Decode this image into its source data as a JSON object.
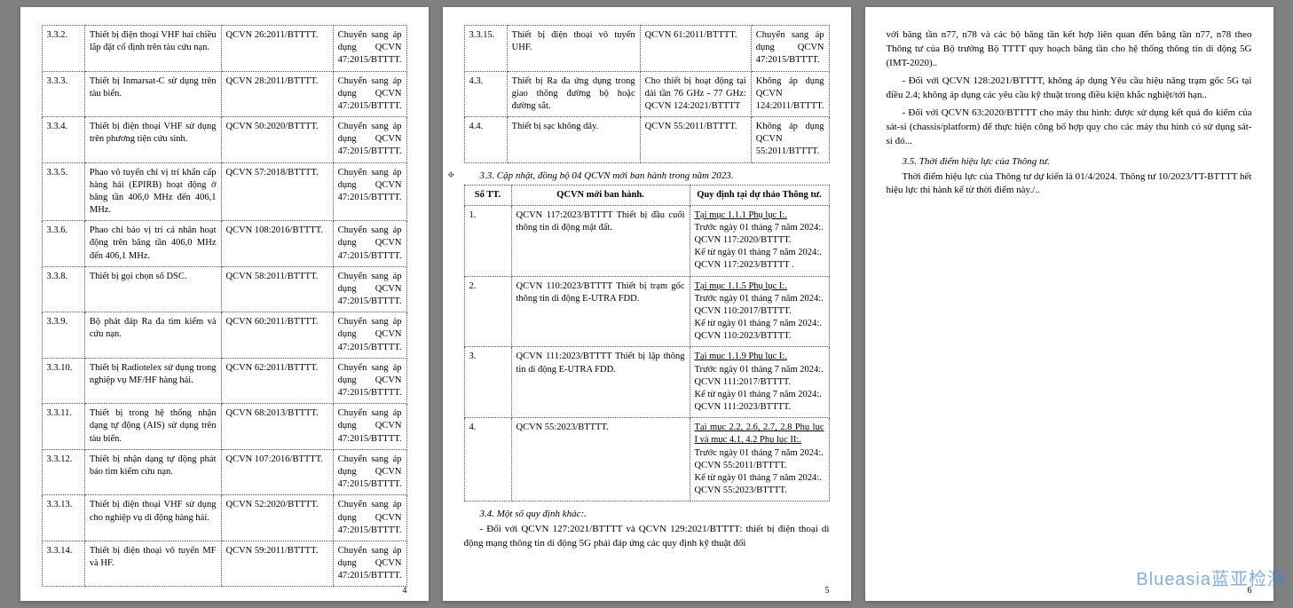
{
  "page1": {
    "rows": [
      {
        "idx": "3.3.2.",
        "desc": "Thiết bị điện thoại VHF hai chiều lắp đặt cố định trên tàu cứu nạn.",
        "code": "QCVN 26:2011/BTTTT.",
        "note": "Chuyển sang áp dụng QCVN 47:2015/BTTTT."
      },
      {
        "idx": "3.3.3.",
        "desc": "Thiết bị Inmarsat-C sử dụng trên tàu biển.",
        "code": "QCVN 28:2011/BTTTT.",
        "note": "Chuyển sang áp dụng QCVN 47:2015/BTTTT."
      },
      {
        "idx": "3.3.4.",
        "desc": "Thiết bị điện thoại VHF sử dụng trên phương tiện cứu sinh.",
        "code": "QCVN 50:2020/BTTTT.",
        "note": "Chuyển sang áp dụng QCVN 47:2015/BTTTT."
      },
      {
        "idx": "3.3.5.",
        "desc": "Phao vô tuyến chỉ vị trí khẩn cấp hàng hải (EPIRB) hoạt động ở băng tần 406,0 MHz đến 406,1 MHz.",
        "code": "QCVN 57:2018/BTTTT.",
        "note": "Chuyển sang áp dụng QCVN 47:2015/BTTTT."
      },
      {
        "idx": "3.3.6.",
        "desc": "Phao chỉ báo vị trí cá nhân hoạt động trên băng tần 406,0 MHz đến 406,1 MHz.",
        "code": "QCVN 108:2016/BTTTT.",
        "note": "Chuyển sang áp dụng QCVN 47:2015/BTTTT."
      },
      {
        "idx": "3.3.8.",
        "desc": "Thiết bị gọi chọn số DSC.",
        "code": "QCVN 58:2011/BTTTT.",
        "note": "Chuyển sang áp dụng QCVN 47:2015/BTTTT."
      },
      {
        "idx": "3.3.9.",
        "desc": "Bộ phát đáp Ra đa tìm kiếm và cứu nạn.",
        "code": "QCVN 60:2011/BTTTT.",
        "note": "Chuyển sang áp dụng QCVN 47:2015/BTTTT."
      },
      {
        "idx": "3.3.10.",
        "desc": "Thiết bị Radiotelex sử dụng trong nghiệp vụ MF/HF hàng hải.",
        "code": "QCVN 62:2011/BTTTT.",
        "note": "Chuyển sang áp dụng QCVN 47:2015/BTTTT."
      },
      {
        "idx": "3.3.11.",
        "desc": "Thiết bị trong hệ thống nhận dạng tự động (AIS) sử dụng trên tàu biển.",
        "code": "QCVN 68:2013/BTTTT.",
        "note": "Chuyển sang áp dụng QCVN 47:2015/BTTTT."
      },
      {
        "idx": "3.3.12.",
        "desc": "Thiết bị nhận dạng tự động phát báo tìm kiếm cứu nạn.",
        "code": "QCVN 107:2016/BTTTT.",
        "note": "Chuyển sang áp dụng QCVN 47:2015/BTTTT."
      },
      {
        "idx": "3.3.13.",
        "desc": "Thiết bị điện thoại VHF sử dụng cho nghiệp vụ di động hàng hải.",
        "code": "QCVN 52:2020/BTTTT.",
        "note": "Chuyển sang áp dụng QCVN 47:2015/BTTTT."
      },
      {
        "idx": "3.3.14.",
        "desc": "Thiết bị điện thoại vô tuyến MF và HF.",
        "code": "QCVN 59:2011/BTTTT.",
        "note": "Chuyển sang áp dụng QCVN 47:2015/BTTTT."
      }
    ],
    "pagenum": "4"
  },
  "page2": {
    "rows_top": [
      {
        "idx": "3.3.15.",
        "desc": "Thiết bị điện thoại vô tuyến UHF.",
        "code": "QCVN 61:2011/BTTTT.",
        "note": "Chuyển sang áp dụng QCVN 47:2015/BTTTT."
      },
      {
        "idx": "4.3.",
        "desc": "Thiết bị Ra đa ứng dụng trong giao thông đường bộ hoặc đường sắt.",
        "code": "Cho thiết bị hoạt động tại dải tần 76 GHz - 77 GHz: QCVN 124:2021/BTTTT",
        "note": "Không áp dụng QCVN 124:2011/BTTTT."
      },
      {
        "idx": "4.4.",
        "desc": "Thiết bị sạc không dây.",
        "code": "QCVN 55:2011/BTTTT.",
        "note": "Không áp dụng QCVN 55:2011/BTTTT."
      }
    ],
    "heading33": "3.3. Cập nhật, đồng bộ 04 QCVN mới ban hành trong năm 2023.",
    "tbl2_header": {
      "c0": "Số TT.",
      "c1": "QCVN mới ban hành.",
      "c2": "Quy định tại dự thảo Thông tư."
    },
    "tbl2_rows": [
      {
        "idx": "1.",
        "col1": "QCVN 117:2023/BTTTT Thiết bị đầu cuối thông tin di động mặt đất.",
        "col2": "Tại mục 1.1.1 Phụ lục I:.\nTrước ngày 01 tháng 7 năm 2024:.\nQCVN 117:2020/BTTTT.\nKể từ ngày 01 tháng 7 năm 2024:.\nQCVN 117:2023/BTTTT ."
      },
      {
        "idx": "2.",
        "col1": "QCVN 110:2023/BTTTT Thiết bị trạm gốc thông tin di động E-UTRA FDD.",
        "col2": "Tại mục 1.1.5 Phụ lục I:.\nTrước ngày 01 tháng 7 năm 2024:.\nQCVN 110:2017/BTTTT.\nKể từ ngày 01 tháng 7 năm 2024:.\nQCVN 110:2023/BTTTT."
      },
      {
        "idx": "3.",
        "col1": "QCVN 111:2023/BTTTT Thiết bị lặp thông tin di động E-UTRA FDD.",
        "col2": "Tại mục 1.1.9 Phụ lục I:.\nTrước ngày 01 tháng 7 năm 2024:.\nQCVN 111:2017/BTTTT.\nKể từ ngày 01 tháng 7 năm 2024:.\nQCVN 111:2023/BTTTT."
      },
      {
        "idx": "4.",
        "col1": "QCVN 55:2023/BTTTT.",
        "col2": "Tại mục 2.2, 2.6, 2.7, 2.8 Phụ lục I và mục 4.1, 4.2 Phụ lục II:.\nTrước ngày 01 tháng 7 năm 2024:.\nQCVN 55:2011/BTTTT.\nKể từ ngày 01 tháng 7 năm 2024:.\nQCVN 55:2023/BTTTT."
      }
    ],
    "heading34": "3.4. Một số quy định khác:.",
    "para_bottom": "- Đối với QCVN 127:2021/BTTTT và QCVN 129:2021/BTTTT: thiết bị điện thoại di động mạng thông tin di động 5G phải đáp ứng các quy định kỹ thuật đối",
    "pagenum": "5"
  },
  "page3": {
    "para1": "với băng tần n77, n78 và các bộ băng tần kết hợp liên quan đến băng tần n77, n78 theo Thông tư của Bộ trưởng Bộ TTTT quy hoạch băng tần cho hệ thống thông tin di động 5G (IMT-2020)..",
    "para2": "- Đối với QCVN 128:2021/BTTTT, không áp dụng Yêu cầu hiệu năng trạm gốc 5G tại điều 2.4; không áp dụng các yêu cầu kỹ thuật trong điều kiện khắc nghiệt/tới hạn..",
    "para3": "- Đối với QCVN 63:2020/BTTTT cho máy thu hình: được sử dụng kết quả đo kiểm của sát-si (chassis/platform) để thực hiện công bố hợp quy cho các máy thu hình có sử dụng sát-si đó...",
    "heading35": "3.5. Thời điểm hiệu lực của Thông tư.",
    "para4": "Thời điểm hiệu lực của Thông tư dự kiến là 01/4/2024. Thông tư 10/2023/TT-BTTTT hết hiệu lực thi hành kể từ thời điểm này./..",
    "pagenum": "6"
  },
  "watermark": "Blueasia蓝亚检测"
}
